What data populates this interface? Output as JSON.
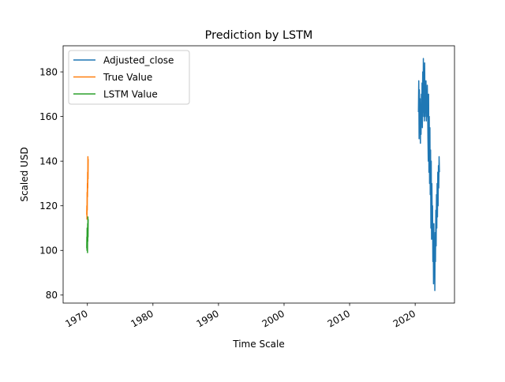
{
  "chart_data": {
    "type": "line",
    "title": "Prediction by LSTM",
    "xlabel": "Time Scale",
    "ylabel": "Scaled USD",
    "xlim": [
      1966.3,
      2026.0
    ],
    "ylim": [
      76.4,
      191.7
    ],
    "x_ticks": [
      1970,
      1980,
      1990,
      2000,
      2010,
      2020
    ],
    "x_tick_labels": [
      "1970",
      "1980",
      "1990",
      "2000",
      "2010",
      "2020"
    ],
    "y_ticks": [
      80,
      100,
      120,
      140,
      160,
      180
    ],
    "y_tick_labels": [
      "80",
      "100",
      "120",
      "140",
      "160",
      "180"
    ],
    "grid": false,
    "legend_position": "upper-left",
    "series": [
      {
        "name": "Adjusted_close",
        "color": "#1f77b4",
        "x": [
          2020.5,
          2020.55,
          2020.6,
          2020.65,
          2020.7,
          2020.75,
          2020.8,
          2020.85,
          2020.9,
          2020.95,
          2021.0,
          2021.05,
          2021.1,
          2021.15,
          2021.2,
          2021.25,
          2021.3,
          2021.35,
          2021.4,
          2021.45,
          2021.5,
          2021.55,
          2021.6,
          2021.65,
          2021.7,
          2021.75,
          2021.8,
          2021.85,
          2021.9,
          2021.95,
          2022.0,
          2022.05,
          2022.1,
          2022.15,
          2022.2,
          2022.25,
          2022.3,
          2022.35,
          2022.4,
          2022.45,
          2022.5,
          2022.55,
          2022.6,
          2022.65,
          2022.7,
          2022.75,
          2022.8,
          2022.85,
          2022.9,
          2022.95,
          2023.0,
          2023.05,
          2023.1,
          2023.15,
          2023.2,
          2023.25,
          2023.3,
          2023.35,
          2023.4,
          2023.45,
          2023.5,
          2023.55,
          2023.6,
          2023.65,
          2023.7
        ],
        "y": [
          162,
          176,
          150,
          172,
          156,
          168,
          148,
          165,
          152,
          170,
          158,
          175,
          155,
          180,
          160,
          186,
          162,
          178,
          158,
          184,
          160,
          170,
          162,
          176,
          158,
          168,
          160,
          174,
          165,
          150,
          140,
          170,
          135,
          160,
          130,
          155,
          125,
          145,
          110,
          140,
          105,
          130,
          115,
          120,
          95,
          110,
          85,
          112,
          90,
          105,
          82,
          108,
          95,
          118,
          102,
          125,
          110,
          130,
          115,
          135,
          120,
          138,
          128,
          142,
          135
        ]
      },
      {
        "name": "True Value",
        "color": "#ff7f0e",
        "x": [
          1969.9,
          1969.92,
          1969.94,
          1969.96,
          1969.98,
          1970.0,
          1970.02,
          1970.04,
          1970.06,
          1970.08,
          1970.1,
          1970.12
        ],
        "y": [
          116,
          120,
          114,
          126,
          118,
          130,
          124,
          135,
          128,
          142,
          132,
          141
        ]
      },
      {
        "name": "LSTM Value",
        "color": "#2ca02c",
        "x": [
          1969.9,
          1969.92,
          1969.94,
          1969.96,
          1969.98,
          1970.0,
          1970.02,
          1970.04,
          1970.06,
          1970.08,
          1970.1,
          1970.12
        ],
        "y": [
          101,
          106,
          100,
          110,
          103,
          108,
          99,
          112,
          104,
          115,
          106,
          114
        ]
      }
    ]
  }
}
